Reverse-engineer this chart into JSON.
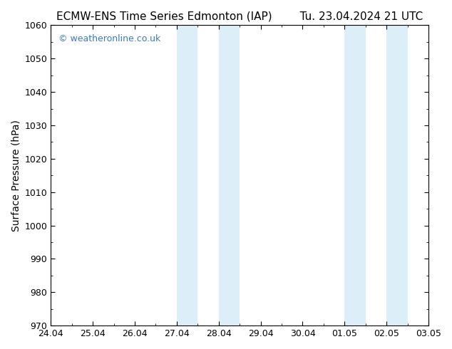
{
  "title_left": "ECMW-ENS Time Series Edmonton (IAP)",
  "title_right": "Tu. 23.04.2024 21 UTC",
  "ylabel": "Surface Pressure (hPa)",
  "ylim": [
    970,
    1060
  ],
  "yticks": [
    970,
    980,
    990,
    1000,
    1010,
    1020,
    1030,
    1040,
    1050,
    1060
  ],
  "x_start": 0,
  "x_end": 9.0,
  "xtick_labels": [
    "24.04",
    "25.04",
    "26.04",
    "27.04",
    "28.04",
    "29.04",
    "30.04",
    "01.05",
    "02.05",
    "03.05"
  ],
  "xtick_positions": [
    0,
    1,
    2,
    3,
    4,
    5,
    6,
    7,
    8,
    9
  ],
  "shaded_bands": [
    {
      "x_start": 3.0,
      "x_end": 3.5
    },
    {
      "x_start": 4.0,
      "x_end": 4.5
    },
    {
      "x_start": 7.0,
      "x_end": 7.5
    },
    {
      "x_start": 8.0,
      "x_end": 8.5
    }
  ],
  "shade_color": "#dceef8",
  "watermark_text": "© weatheronline.co.uk",
  "watermark_color": "#3a7abf",
  "background_color": "#ffffff",
  "plot_bg_color": "#ffffff",
  "title_fontsize": 11,
  "ylabel_fontsize": 10,
  "tick_fontsize": 9,
  "watermark_fontsize": 9
}
